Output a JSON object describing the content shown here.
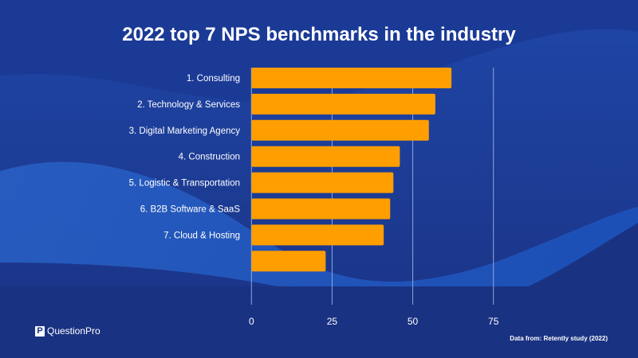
{
  "brand": {
    "name": "QuestionPro",
    "logo_letter": "P"
  },
  "source_note": "Data from: Retently study (2022)",
  "colors": {
    "background": "#1a3282",
    "bar": "#ff9e00",
    "text": "#ffffff",
    "grid": "#8fa6dc"
  },
  "chart_data": {
    "type": "bar",
    "orientation": "horizontal",
    "title": "2022 top 7 NPS benchmarks in the industry",
    "categories": [
      "1. Consulting",
      "2. Technology & Services",
      "3. Digital Marketing Agency",
      "4. Construction",
      "5. Logistic & Transportation",
      "6. B2B Software & SaaS",
      "7. Cloud & Hosting",
      ""
    ],
    "values": [
      62,
      57,
      55,
      46,
      44,
      43,
      41,
      23
    ],
    "xlabel": "",
    "ylabel": "",
    "xlim": [
      0,
      75
    ],
    "xticks": [
      "0",
      "25",
      "50",
      "75"
    ],
    "grid": true
  }
}
